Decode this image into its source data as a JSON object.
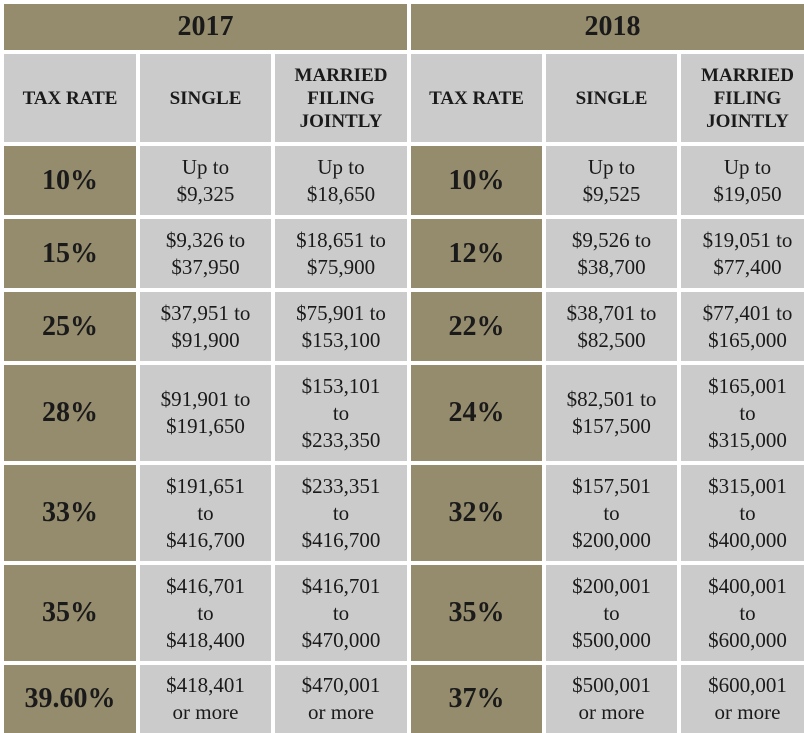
{
  "years": [
    "2017",
    "2018"
  ],
  "headers": {
    "rate": "TAX RATE",
    "single": "SINGLE",
    "married": [
      "MARRIED",
      "FILING",
      "JOINTLY"
    ]
  },
  "rows_2017": [
    {
      "rate": "10%",
      "single": [
        "Up to",
        "$9,325"
      ],
      "married": [
        "Up to",
        "$18,650"
      ]
    },
    {
      "rate": "15%",
      "single": [
        "$9,326 to",
        "$37,950"
      ],
      "married": [
        "$18,651 to",
        "$75,900"
      ]
    },
    {
      "rate": "25%",
      "single": [
        "$37,951 to",
        "$91,900"
      ],
      "married": [
        "$75,901 to",
        "$153,100"
      ]
    },
    {
      "rate": "28%",
      "single": [
        "$91,901 to",
        "$191,650"
      ],
      "married": [
        "$153,101",
        "to",
        "$233,350"
      ]
    },
    {
      "rate": "33%",
      "single": [
        "$191,651",
        "to",
        "$416,700"
      ],
      "married": [
        "$233,351",
        "to",
        "$416,700"
      ]
    },
    {
      "rate": "35%",
      "single": [
        "$416,701",
        "to",
        "$418,400"
      ],
      "married": [
        "$416,701",
        "to",
        "$470,000"
      ]
    },
    {
      "rate": "39.60%",
      "single": [
        "$418,401",
        "or more"
      ],
      "married": [
        "$470,001",
        "or more"
      ]
    }
  ],
  "rows_2018": [
    {
      "rate": "10%",
      "single": [
        "Up to",
        "$9,525"
      ],
      "married": [
        "Up to",
        "$19,050"
      ]
    },
    {
      "rate": "12%",
      "single": [
        "$9,526 to",
        "$38,700"
      ],
      "married": [
        "$19,051 to",
        "$77,400"
      ]
    },
    {
      "rate": "22%",
      "single": [
        "$38,701 to",
        "$82,500"
      ],
      "married": [
        "$77,401 to",
        "$165,000"
      ]
    },
    {
      "rate": "24%",
      "single": [
        "$82,501 to",
        "$157,500"
      ],
      "married": [
        "$165,001",
        "to",
        "$315,000"
      ]
    },
    {
      "rate": "32%",
      "single": [
        "$157,501",
        "to",
        "$200,000"
      ],
      "married": [
        "$315,001",
        "to",
        "$400,000"
      ]
    },
    {
      "rate": "35%",
      "single": [
        "$200,001",
        "to",
        "$500,000"
      ],
      "married": [
        "$400,001",
        "to",
        "$600,000"
      ]
    },
    {
      "rate": "37%",
      "single": [
        "$500,001",
        "or more"
      ],
      "married": [
        "$600,001",
        "or more"
      ]
    }
  ],
  "colors": {
    "accent": "#958c6e",
    "cell": "#cbcbcb",
    "border": "#ffffff"
  }
}
